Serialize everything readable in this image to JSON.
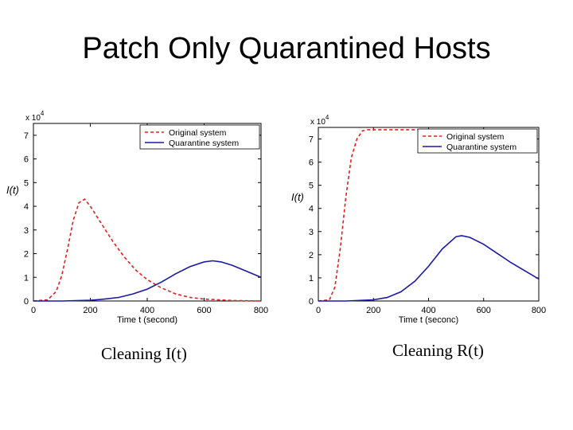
{
  "slide": {
    "title": "Patch Only Quarantined Hosts",
    "captions": [
      "Cleaning I(t)",
      "Cleaning R(t)"
    ]
  },
  "colors": {
    "original": "#e0201e",
    "quarantine": "#1a1aa0",
    "axis": "#000000"
  },
  "chart_data": [
    {
      "type": "line",
      "ylabel": "I(t)",
      "xlabel": "Time t (second)",
      "multiplier": "x 10",
      "multiplier_exp": "4",
      "xlim": [
        0,
        800
      ],
      "ylim": [
        0,
        7.5
      ],
      "xticks": [
        0,
        200,
        400,
        600,
        800
      ],
      "yticks": [
        0,
        1,
        2,
        3,
        4,
        5,
        6,
        7
      ],
      "legend": "top-right",
      "series": [
        {
          "name": "Original system",
          "style": "dashed",
          "color": "#e0201e",
          "x": [
            0,
            50,
            80,
            100,
            120,
            140,
            160,
            180,
            200,
            240,
            280,
            320,
            360,
            400,
            450,
            500,
            550,
            600,
            700,
            800
          ],
          "y": [
            0,
            0.05,
            0.4,
            1.1,
            2.2,
            3.4,
            4.15,
            4.3,
            4.0,
            3.25,
            2.5,
            1.85,
            1.3,
            0.9,
            0.55,
            0.3,
            0.15,
            0.08,
            0.02,
            0
          ]
        },
        {
          "name": "Quarantine system",
          "style": "solid",
          "color": "#1a1aa0",
          "x": [
            0,
            100,
            200,
            250,
            300,
            350,
            400,
            450,
            500,
            550,
            600,
            630,
            660,
            700,
            750,
            800
          ],
          "y": [
            0,
            0,
            0.03,
            0.08,
            0.15,
            0.3,
            0.5,
            0.8,
            1.15,
            1.45,
            1.65,
            1.7,
            1.65,
            1.5,
            1.25,
            1.0
          ]
        }
      ]
    },
    {
      "type": "line",
      "ylabel": "I(t)",
      "xlabel": "Time t (seconc)",
      "multiplier": "x 10",
      "multiplier_exp": "4",
      "xlim": [
        0,
        800
      ],
      "ylim": [
        0,
        7.5
      ],
      "xticks": [
        0,
        200,
        400,
        600,
        800
      ],
      "yticks": [
        0,
        1,
        2,
        3,
        4,
        5,
        6,
        7
      ],
      "legend": "top-right",
      "series": [
        {
          "name": "Original system",
          "style": "dashed",
          "color": "#e0201e",
          "x": [
            0,
            40,
            60,
            80,
            100,
            120,
            140,
            160,
            180,
            200,
            800
          ],
          "y": [
            0,
            0.05,
            0.6,
            2.3,
            4.5,
            6.2,
            7.0,
            7.35,
            7.4,
            7.4,
            7.4
          ]
        },
        {
          "name": "Quarantine system",
          "style": "solid",
          "color": "#1a1aa0",
          "x": [
            0,
            100,
            200,
            250,
            300,
            350,
            400,
            450,
            500,
            520,
            550,
            600,
            650,
            700,
            750,
            800
          ],
          "y": [
            0,
            0,
            0.05,
            0.15,
            0.4,
            0.85,
            1.5,
            2.25,
            2.78,
            2.82,
            2.75,
            2.45,
            2.05,
            1.65,
            1.3,
            0.95
          ]
        }
      ]
    }
  ]
}
